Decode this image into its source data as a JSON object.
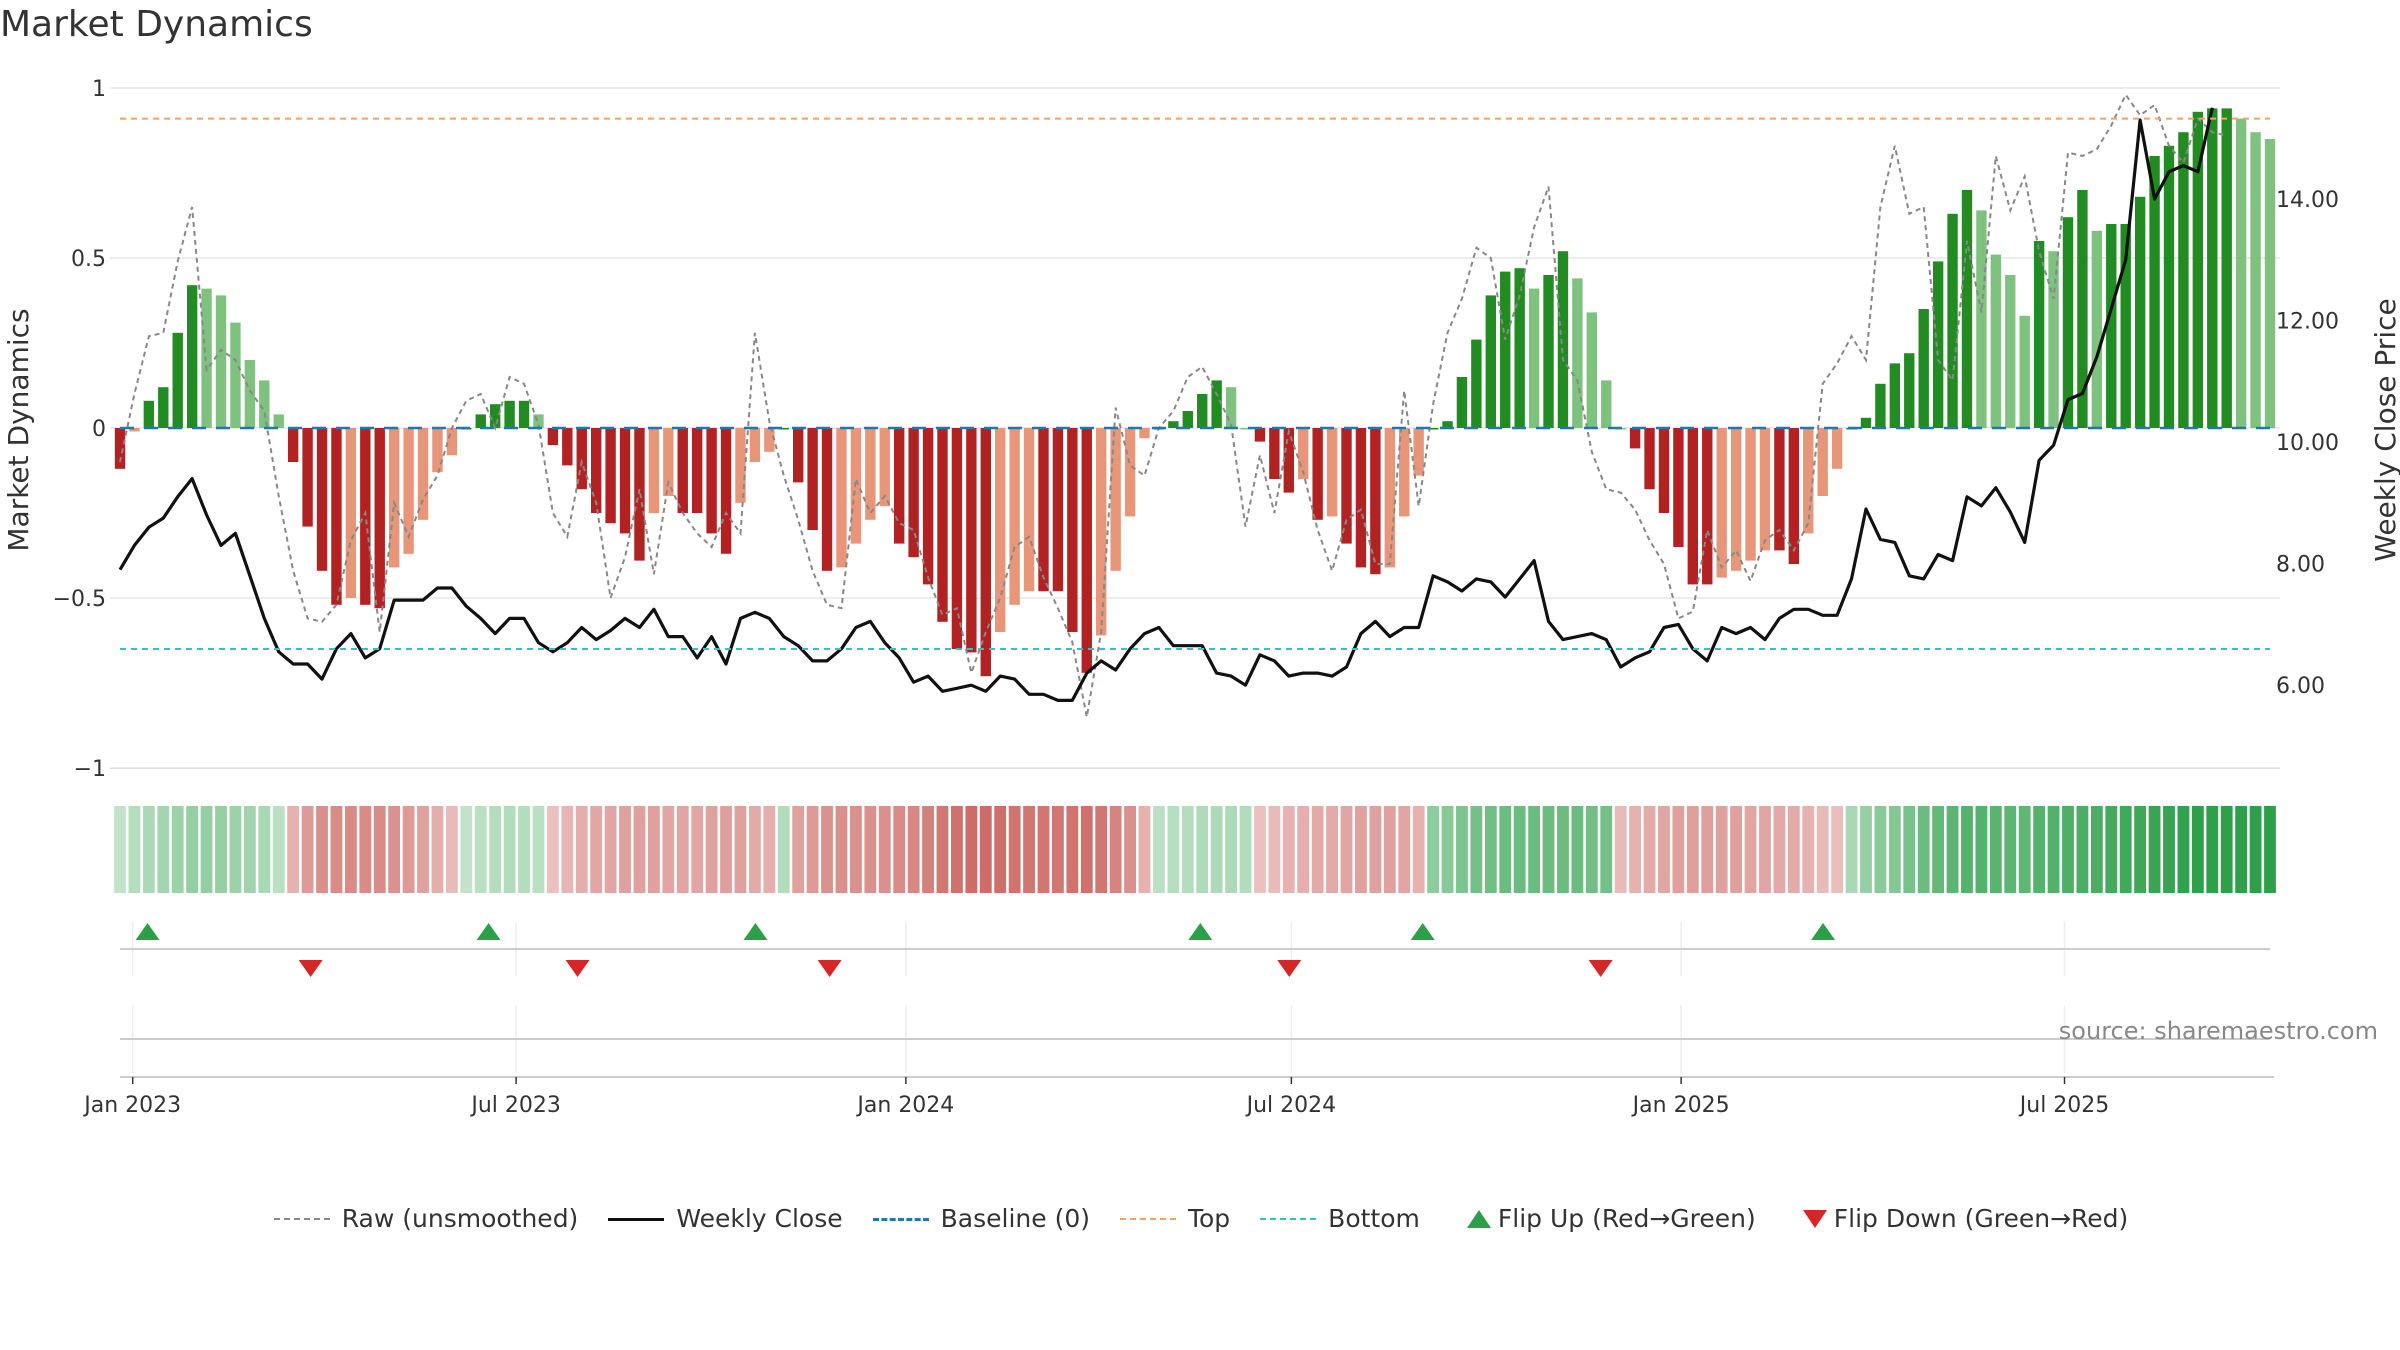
{
  "title": "Market Dynamics",
  "source": "source: sharemaestro.com",
  "colors": {
    "strong_green": "#228B22",
    "light_green": "#7FC17F",
    "strong_red": "#B22222",
    "light_red": "#E8967A",
    "raw": "#888888",
    "close": "#111111",
    "baseline": "#1f77b4",
    "top": "#f4a261",
    "bottom": "#2ec4c4",
    "flip_up": "#2ca048",
    "flip_down": "#d62728"
  },
  "legend": [
    {
      "key": "raw",
      "label": "Raw (unsmoothed)"
    },
    {
      "key": "close",
      "label": "Weekly Close"
    },
    {
      "key": "baseline",
      "label": "Baseline (0)"
    },
    {
      "key": "top",
      "label": "Top"
    },
    {
      "key": "bottom",
      "label": "Bottom"
    },
    {
      "key": "flip_up",
      "label": "Flip Up (Red→Green)"
    },
    {
      "key": "flip_down",
      "label": "Flip Down (Green→Red)"
    }
  ],
  "chart_data": {
    "type": "bar",
    "title": "Market Dynamics",
    "ylabel": "Market Dynamics",
    "y2label": "Weekly Close Price",
    "ylim": [
      -1,
      1
    ],
    "y_ticks": [
      "1",
      "0.5",
      "0",
      "−0.5",
      "−1"
    ],
    "y2lim": [
      4.6,
      15.9
    ],
    "y2_ticks": [
      "14.00",
      "12.00",
      "10.00",
      "8.00",
      "6.00"
    ],
    "x_start": "2022-12-26",
    "x_end": "2025-10-06",
    "x_ticks": [
      {
        "date": "2023-01-01",
        "label": "Jan 2023"
      },
      {
        "date": "2023-07-01",
        "label": "Jul 2023"
      },
      {
        "date": "2024-01-01",
        "label": "Jan 2024"
      },
      {
        "date": "2024-07-01",
        "label": "Jul 2024"
      },
      {
        "date": "2025-01-01",
        "label": "Jan 2025"
      },
      {
        "date": "2025-07-01",
        "label": "Jul 2025"
      }
    ],
    "top_level": 0.91,
    "bottom_level": -0.65,
    "grid": true,
    "legend_position": "bottom",
    "series": [
      {
        "name": "Market Dynamics",
        "values": [
          -0.12,
          -0.01,
          0.08,
          0.12,
          0.28,
          0.42,
          0.41,
          0.39,
          0.31,
          0.2,
          0.14,
          0.04,
          -0.1,
          -0.29,
          -0.42,
          -0.52,
          -0.5,
          -0.52,
          -0.53,
          -0.41,
          -0.37,
          -0.27,
          -0.13,
          -0.08,
          0.0,
          0.04,
          0.07,
          0.08,
          0.08,
          0.04,
          -0.05,
          -0.11,
          -0.18,
          -0.25,
          -0.28,
          -0.31,
          -0.39,
          -0.25,
          -0.2,
          -0.25,
          -0.25,
          -0.31,
          -0.37,
          -0.22,
          -0.1,
          -0.07,
          0.0,
          -0.16,
          -0.3,
          -0.42,
          -0.41,
          -0.34,
          -0.27,
          -0.23,
          -0.34,
          -0.38,
          -0.46,
          -0.57,
          -0.65,
          -0.66,
          -0.73,
          -0.6,
          -0.52,
          -0.48,
          -0.48,
          -0.48,
          -0.6,
          -0.72,
          -0.61,
          -0.42,
          -0.26,
          -0.03,
          0.0,
          0.02,
          0.05,
          0.1,
          0.14,
          0.12,
          0.0,
          -0.04,
          -0.15,
          -0.19,
          -0.15,
          -0.27,
          -0.26,
          -0.34,
          -0.41,
          -0.43,
          -0.41,
          -0.26,
          -0.14,
          0.0,
          0.02,
          0.15,
          0.26,
          0.39,
          0.46,
          0.47,
          0.41,
          0.45,
          0.52,
          0.44,
          0.34,
          0.14,
          0.0,
          -0.06,
          -0.18,
          -0.25,
          -0.35,
          -0.46,
          -0.46,
          -0.44,
          -0.42,
          -0.39,
          -0.36,
          -0.36,
          -0.4,
          -0.31,
          -0.2,
          -0.12,
          0.0,
          0.03,
          0.13,
          0.19,
          0.22,
          0.35,
          0.49,
          0.63,
          0.7,
          0.64,
          0.51,
          0.45,
          0.33,
          0.55,
          0.52,
          0.62,
          0.7,
          0.58,
          0.6,
          0.6,
          0.68,
          0.8,
          0.83,
          0.87,
          0.93,
          0.94,
          0.94,
          0.91,
          0.87,
          0.85
        ]
      },
      {
        "name": "Raw (unsmoothed)",
        "values": [
          -0.1,
          0.1,
          0.27,
          0.28,
          0.49,
          0.65,
          0.17,
          0.23,
          0.2,
          0.11,
          0.05,
          -0.2,
          -0.42,
          -0.56,
          -0.57,
          -0.52,
          -0.33,
          -0.25,
          -0.6,
          -0.22,
          -0.32,
          -0.21,
          -0.14,
          0.0,
          0.08,
          0.1,
          0.0,
          0.15,
          0.13,
          0.01,
          -0.25,
          -0.32,
          -0.1,
          -0.22,
          -0.5,
          -0.38,
          -0.18,
          -0.43,
          -0.16,
          -0.25,
          -0.31,
          -0.35,
          -0.25,
          -0.31,
          0.28,
          0.02,
          -0.14,
          -0.27,
          -0.42,
          -0.52,
          -0.53,
          -0.15,
          -0.25,
          -0.2,
          -0.28,
          -0.3,
          -0.44,
          -0.55,
          -0.53,
          -0.72,
          -0.6,
          -0.5,
          -0.35,
          -0.32,
          -0.44,
          -0.53,
          -0.63,
          -0.85,
          -0.6,
          0.06,
          -0.11,
          -0.14,
          0.0,
          0.05,
          0.15,
          0.18,
          0.1,
          0.01,
          -0.29,
          -0.08,
          -0.25,
          -0.01,
          -0.13,
          -0.3,
          -0.42,
          -0.27,
          -0.24,
          -0.4,
          -0.4,
          0.11,
          -0.23,
          0.07,
          0.28,
          0.38,
          0.53,
          0.5,
          0.26,
          0.39,
          0.59,
          0.71,
          0.2,
          0.14,
          -0.07,
          -0.18,
          -0.19,
          -0.24,
          -0.33,
          -0.4,
          -0.56,
          -0.54,
          -0.3,
          -0.41,
          -0.36,
          -0.45,
          -0.33,
          -0.3,
          -0.36,
          -0.28,
          0.13,
          0.19,
          0.27,
          0.2,
          0.65,
          0.83,
          0.63,
          0.65,
          0.2,
          0.14,
          0.55,
          0.34,
          0.8,
          0.64,
          0.74,
          0.52,
          0.38,
          0.81,
          0.8,
          0.82,
          0.89,
          0.98,
          0.92,
          0.95,
          0.83,
          0.78,
          0.91,
          0.87,
          0.86
        ]
      },
      {
        "name": "Weekly Close",
        "values": [
          7.9,
          8.3,
          8.6,
          8.75,
          9.1,
          9.4,
          8.8,
          8.3,
          8.5,
          7.8,
          7.1,
          6.55,
          6.35,
          6.35,
          6.1,
          6.6,
          6.85,
          6.45,
          6.6,
          7.4,
          7.4,
          7.4,
          7.6,
          7.6,
          7.3,
          7.1,
          6.85,
          7.1,
          7.1,
          6.7,
          6.55,
          6.7,
          6.95,
          6.75,
          6.9,
          7.1,
          6.95,
          7.25,
          6.8,
          6.8,
          6.45,
          6.8,
          6.35,
          7.1,
          7.2,
          7.1,
          6.8,
          6.65,
          6.4,
          6.4,
          6.6,
          6.95,
          7.05,
          6.7,
          6.45,
          6.05,
          6.15,
          5.9,
          5.95,
          6.0,
          5.9,
          6.15,
          6.1,
          5.85,
          5.85,
          5.75,
          5.75,
          6.2,
          6.4,
          6.25,
          6.6,
          6.85,
          6.95,
          6.65,
          6.65,
          6.65,
          6.2,
          6.15,
          6.0,
          6.5,
          6.4,
          6.15,
          6.2,
          6.2,
          6.15,
          6.3,
          6.85,
          7.05,
          6.8,
          6.95,
          6.95,
          7.8,
          7.7,
          7.55,
          7.75,
          7.7,
          7.45,
          7.75,
          8.05,
          7.05,
          6.75,
          6.8,
          6.85,
          6.75,
          6.3,
          6.45,
          6.55,
          6.95,
          7.0,
          6.6,
          6.4,
          6.95,
          6.85,
          6.95,
          6.75,
          7.1,
          7.25,
          7.25,
          7.15,
          7.15,
          7.75,
          8.9,
          8.4,
          8.35,
          7.8,
          7.75,
          8.15,
          8.05,
          9.1,
          8.95,
          9.25,
          8.85,
          8.35,
          9.7,
          9.95,
          10.7,
          10.8,
          11.4,
          12.2,
          13.0,
          15.3,
          14.0,
          14.45,
          14.55,
          14.45,
          15.5
        ]
      },
      {
        "name": "Regime Strip",
        "values": [
          0.05,
          0.13,
          0.18,
          0.23,
          0.28,
          0.32,
          0.32,
          0.3,
          0.28,
          0.25,
          0.2,
          0.1,
          -0.2,
          -0.35,
          -0.42,
          -0.45,
          -0.45,
          -0.45,
          -0.45,
          -0.4,
          -0.35,
          -0.3,
          -0.22,
          -0.15,
          0.05,
          0.1,
          0.13,
          0.15,
          0.13,
          0.1,
          -0.1,
          -0.17,
          -0.22,
          -0.27,
          -0.28,
          -0.3,
          -0.32,
          -0.3,
          -0.28,
          -0.28,
          -0.28,
          -0.3,
          -0.32,
          -0.3,
          -0.25,
          -0.22,
          0.15,
          -0.3,
          -0.35,
          -0.4,
          -0.42,
          -0.42,
          -0.42,
          -0.42,
          -0.45,
          -0.48,
          -0.52,
          -0.58,
          -0.62,
          -0.65,
          -0.65,
          -0.63,
          -0.6,
          -0.58,
          -0.58,
          -0.58,
          -0.6,
          -0.62,
          -0.58,
          -0.5,
          -0.42,
          -0.2,
          0.1,
          0.12,
          0.14,
          0.16,
          0.17,
          0.17,
          0.15,
          -0.1,
          -0.15,
          -0.2,
          -0.22,
          -0.25,
          -0.25,
          -0.28,
          -0.3,
          -0.3,
          -0.3,
          -0.28,
          -0.2,
          0.35,
          0.4,
          0.45,
          0.5,
          0.52,
          0.55,
          0.55,
          0.55,
          0.55,
          0.55,
          0.55,
          0.52,
          0.5,
          -0.15,
          -0.2,
          -0.25,
          -0.28,
          -0.3,
          -0.32,
          -0.32,
          -0.3,
          -0.3,
          -0.28,
          -0.28,
          -0.26,
          -0.25,
          -0.2,
          -0.15,
          -0.12,
          0.2,
          0.3,
          0.38,
          0.42,
          0.48,
          0.55,
          0.6,
          0.65,
          0.68,
          0.68,
          0.66,
          0.65,
          0.62,
          0.68,
          0.7,
          0.72,
          0.75,
          0.75,
          0.78,
          0.8,
          0.82,
          0.85,
          0.87,
          0.9,
          0.92,
          0.94,
          0.95,
          0.95,
          0.95,
          0.95
        ]
      }
    ],
    "flips": [
      {
        "date": "2023-01-08",
        "type": "up"
      },
      {
        "date": "2023-03-26",
        "type": "down"
      },
      {
        "date": "2023-06-18",
        "type": "up"
      },
      {
        "date": "2023-07-30",
        "type": "down"
      },
      {
        "date": "2023-10-22",
        "type": "up"
      },
      {
        "date": "2023-11-26",
        "type": "down"
      },
      {
        "date": "2024-05-19",
        "type": "up"
      },
      {
        "date": "2024-06-30",
        "type": "down"
      },
      {
        "date": "2024-09-01",
        "type": "up"
      },
      {
        "date": "2024-11-24",
        "type": "down"
      },
      {
        "date": "2025-03-09",
        "type": "up"
      }
    ]
  }
}
